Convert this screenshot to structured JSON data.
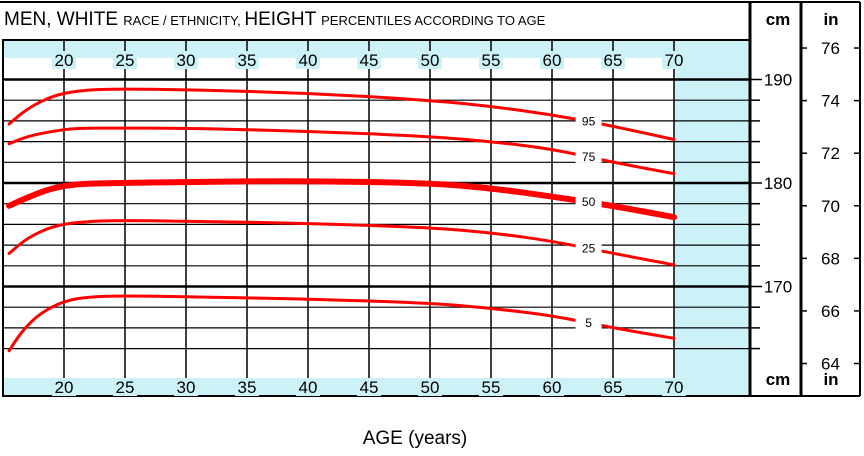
{
  "chart_data": {
    "type": "line",
    "title_parts": [
      "MEN, WHITE ",
      "RACE / ETHNICITY, ",
      "HEIGHT ",
      "PERCENTILES ACCORDING TO AGE"
    ],
    "xlabel": "AGE (years)",
    "x_ticks": [
      20,
      25,
      30,
      35,
      40,
      45,
      50,
      55,
      60,
      65,
      70
    ],
    "xlim": [
      15,
      74
    ],
    "ylim_cm": [
      163.6,
      191.5
    ],
    "cm_ticks": [
      190,
      180,
      170
    ],
    "in_ticks": [
      76,
      74,
      72,
      70,
      68,
      66,
      64
    ],
    "cm_unit": "cm",
    "in_unit": "in",
    "bottom_cm_unit": "cm",
    "bottom_in_unit": "in",
    "grid": true,
    "series": [
      {
        "name": "95",
        "values": [
          [
            15.5,
            185.7
          ],
          [
            17,
            187.2
          ],
          [
            19,
            188.4
          ],
          [
            21,
            188.9
          ],
          [
            24,
            189.1
          ],
          [
            30,
            189.0
          ],
          [
            40,
            188.7
          ],
          [
            50,
            188.0
          ],
          [
            55,
            187.4
          ],
          [
            60,
            186.6
          ],
          [
            65,
            185.5
          ],
          [
            70,
            184.2
          ]
        ]
      },
      {
        "name": "75",
        "values": [
          [
            15.5,
            183.8
          ],
          [
            17,
            184.5
          ],
          [
            19,
            185.0
          ],
          [
            21,
            185.3
          ],
          [
            24,
            185.3
          ],
          [
            30,
            185.3
          ],
          [
            40,
            185.0
          ],
          [
            50,
            184.5
          ],
          [
            55,
            184.0
          ],
          [
            60,
            183.3
          ],
          [
            65,
            182.0
          ],
          [
            70,
            180.9
          ]
        ]
      },
      {
        "name": "50",
        "values": [
          [
            15.5,
            177.8
          ],
          [
            17,
            178.6
          ],
          [
            19,
            179.5
          ],
          [
            21,
            179.9
          ],
          [
            24,
            180.0
          ],
          [
            30,
            180.1
          ],
          [
            40,
            180.2
          ],
          [
            50,
            180.0
          ],
          [
            55,
            179.5
          ],
          [
            60,
            178.7
          ],
          [
            65,
            177.8
          ],
          [
            70,
            176.7
          ]
        ]
      },
      {
        "name": "25",
        "values": [
          [
            15.5,
            173.2
          ],
          [
            17,
            174.7
          ],
          [
            19,
            175.8
          ],
          [
            21,
            176.2
          ],
          [
            24,
            176.4
          ],
          [
            30,
            176.3
          ],
          [
            40,
            176.1
          ],
          [
            50,
            175.7
          ],
          [
            55,
            175.2
          ],
          [
            60,
            174.4
          ],
          [
            65,
            173.2
          ],
          [
            70,
            172.1
          ]
        ]
      },
      {
        "name": "5",
        "values": [
          [
            15.5,
            163.8
          ],
          [
            16.5,
            165.6
          ],
          [
            18,
            167.4
          ],
          [
            20,
            168.6
          ],
          [
            22,
            169.0
          ],
          [
            25,
            169.1
          ],
          [
            30,
            169.0
          ],
          [
            40,
            168.8
          ],
          [
            50,
            168.4
          ],
          [
            55,
            167.9
          ],
          [
            60,
            167.2
          ],
          [
            65,
            166.0
          ],
          [
            70,
            165.0
          ]
        ]
      }
    ],
    "colors": {
      "line": "#ff0000",
      "plot_band": "#ccf2f7",
      "grid": "#000000"
    }
  }
}
